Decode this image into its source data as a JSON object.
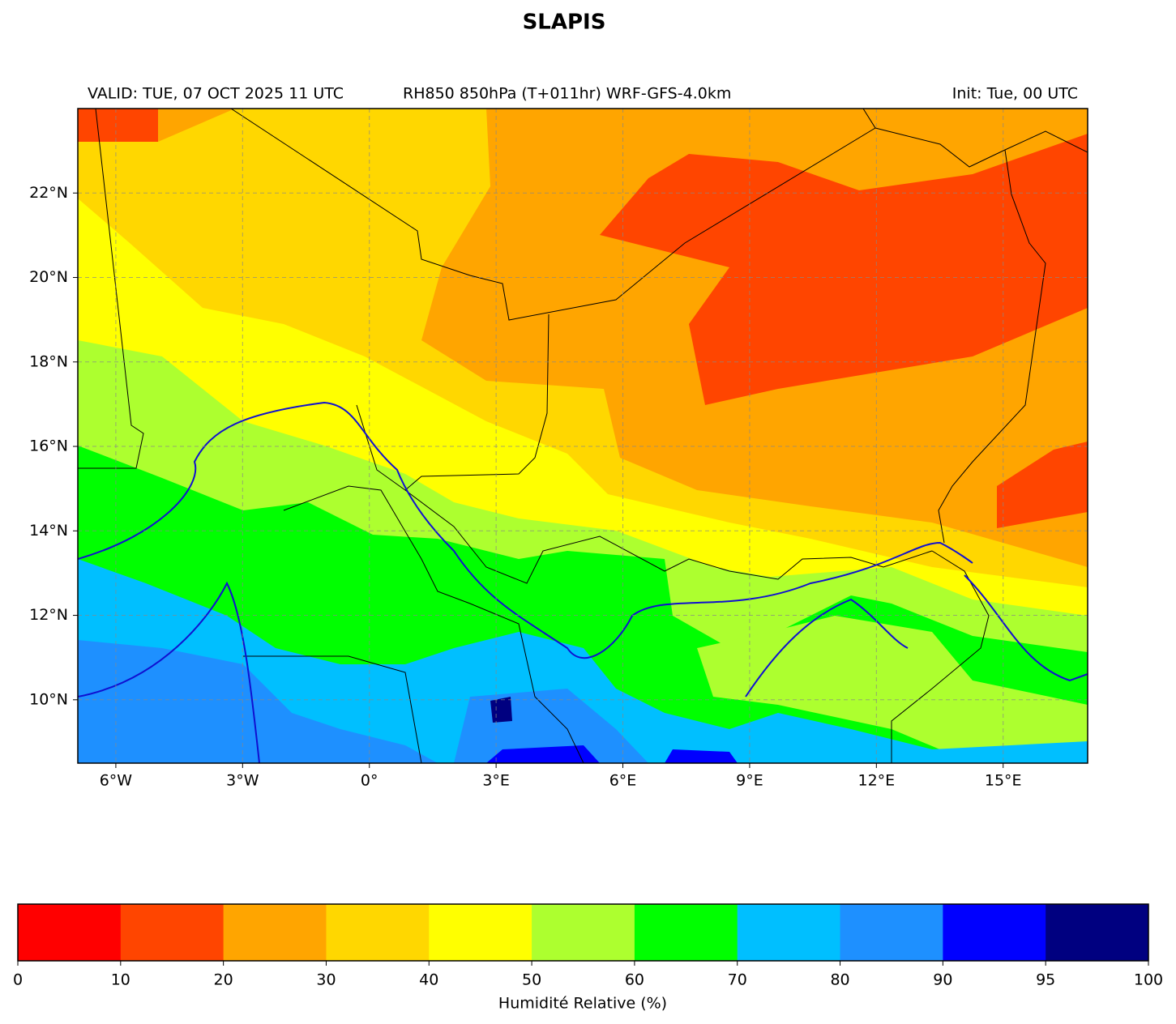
{
  "title": "SLAPIS",
  "valid": "VALID: TUE, 07 OCT 2025 11 UTC",
  "product": "RH850 850hPa (T+011hr) WRF-GFS-4.0km",
  "init": "Init: Tue, 00 UTC",
  "map": {
    "xlim": [
      -6.9,
      17.0
    ],
    "ylim": [
      8.5,
      24.0
    ],
    "grid": true,
    "xticks": [
      {
        "value": -6,
        "label": "6°W"
      },
      {
        "value": -3,
        "label": "3°W"
      },
      {
        "value": 0,
        "label": "0°"
      },
      {
        "value": 3,
        "label": "3°E"
      },
      {
        "value": 6,
        "label": "6°E"
      },
      {
        "value": 9,
        "label": "9°E"
      },
      {
        "value": 12,
        "label": "12°E"
      },
      {
        "value": 15,
        "label": "15°E"
      }
    ],
    "yticks": [
      {
        "value": 10,
        "label": "10°N"
      },
      {
        "value": 12,
        "label": "12°N"
      },
      {
        "value": 14,
        "label": "14°N"
      },
      {
        "value": 16,
        "label": "16°N"
      },
      {
        "value": 18,
        "label": "18°N"
      },
      {
        "value": 20,
        "label": "20°N"
      },
      {
        "value": 22,
        "label": "22°N"
      }
    ]
  },
  "colorbar": {
    "label": "Humidité Relative (%)",
    "bounds": [
      0,
      10,
      20,
      30,
      40,
      50,
      60,
      70,
      80,
      90,
      95,
      100
    ],
    "colors": [
      "#ff0000",
      "#ff4500",
      "#ffa500",
      "#ffd700",
      "#ffff00",
      "#adff2f",
      "#00ff00",
      "#00bfff",
      "#1e90ff",
      "#0000ff",
      "#000080"
    ]
  }
}
